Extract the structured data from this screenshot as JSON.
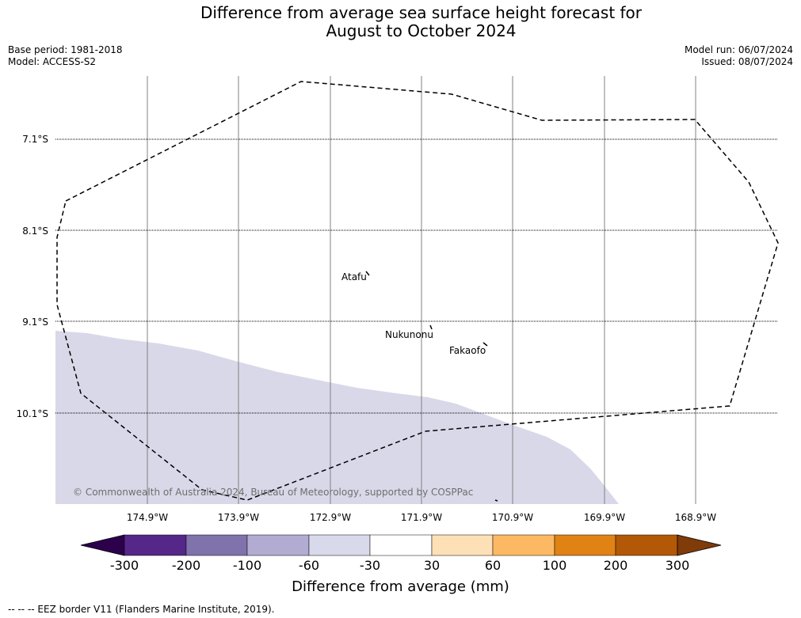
{
  "title": {
    "line1": "Difference from average sea surface height forecast for",
    "line2": "August to October 2024"
  },
  "meta": {
    "base_period": "Base period: 1981-2018",
    "model": "Model: ACCESS-S2",
    "model_run": "Model run: 06/07/2024",
    "issued": "Issued: 08/07/2024"
  },
  "map": {
    "lat_labels": [
      "7.1°S",
      "8.1°S",
      "9.1°S",
      "10.1°S"
    ],
    "lon_labels": [
      "174.9°W",
      "173.9°W",
      "172.9°W",
      "171.9°W",
      "170.9°W",
      "169.9°W",
      "168.9°W"
    ],
    "places": [
      "Atafu",
      "Nukunonu",
      "Fakaofo"
    ],
    "copyright": "© Commonwealth of Australia 2024, Bureau of Meteorology, supported by COSPPac",
    "anomaly_fill_color": "#d8d8e9",
    "anomaly_fill_category": "-60 to -30"
  },
  "colorbar": {
    "ticks": [
      "-300",
      "-200",
      "-100",
      "-60",
      "-30",
      "30",
      "60",
      "100",
      "200",
      "300"
    ],
    "colors": [
      "#2d004b",
      "#542788",
      "#8073ac",
      "#b2abd2",
      "#d8daeb",
      "#ffffff",
      "#fee0b6",
      "#fdb863",
      "#e08214",
      "#b35806",
      "#7f3b08"
    ],
    "label": "Difference from average (mm)"
  },
  "footer": {
    "legend_text": "--  --  -- EEZ border V11 (Flanders Marine Institute, 2019)."
  }
}
